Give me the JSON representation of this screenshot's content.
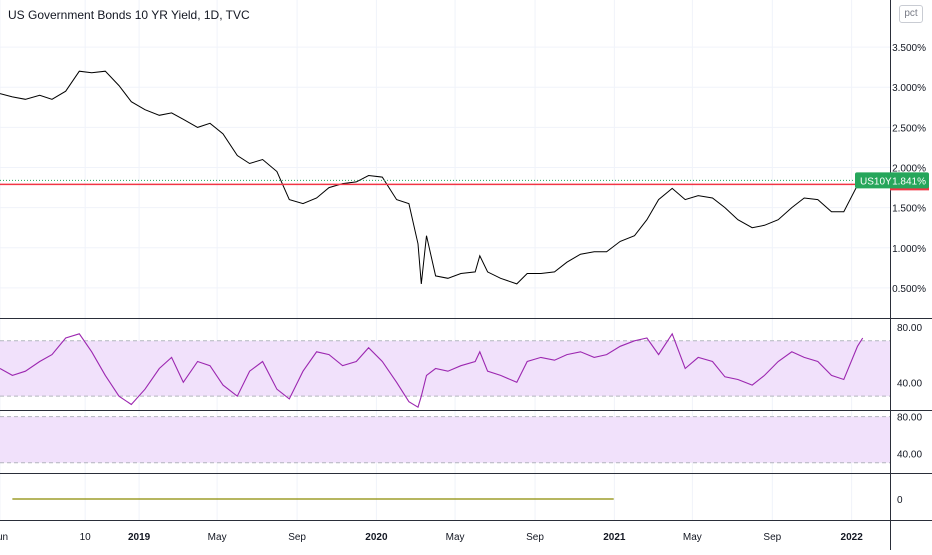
{
  "header": {
    "title": "US Government Bonds 10 YR Yield, 1D, TVC",
    "unit_button": "pct"
  },
  "price_badge": {
    "symbol": "US10Y",
    "value": "1.841%"
  },
  "colors": {
    "price_line": "#000000",
    "horizontal_line": "#f23645",
    "badge_bg": "#26a65b",
    "rsi_line": "#9c27b0",
    "rsi_band": "#f1e1fb",
    "indicator_line": "#8a8a00",
    "axis_text": "#131722"
  },
  "chart_data": [
    {
      "type": "line",
      "name": "price",
      "title": "US Government Bonds 10 YR Yield, 1D, TVC",
      "ylim": [
        0.2,
        3.8
      ],
      "y_ticks": [
        "3.500%",
        "3.000%",
        "2.500%",
        "2.000%",
        "1.500%",
        "1.000%",
        "0.500%"
      ],
      "y_tick_values": [
        3.5,
        3.0,
        2.5,
        2.0,
        1.5,
        1.0,
        0.5
      ],
      "horizontal_level": 1.79,
      "x": [
        "2018-06-01",
        "2018-06-20",
        "2018-07-10",
        "2018-08-01",
        "2018-08-20",
        "2018-09-10",
        "2018-10-01",
        "2018-10-20",
        "2018-11-10",
        "2018-12-01",
        "2018-12-20",
        "2019-01-10",
        "2019-02-01",
        "2019-02-20",
        "2019-03-10",
        "2019-04-01",
        "2019-04-20",
        "2019-05-10",
        "2019-06-01",
        "2019-06-20",
        "2019-07-10",
        "2019-08-01",
        "2019-08-20",
        "2019-09-10",
        "2019-10-01",
        "2019-10-20",
        "2019-11-10",
        "2019-12-01",
        "2019-12-20",
        "2020-01-10",
        "2020-02-01",
        "2020-02-20",
        "2020-03-05",
        "2020-03-10",
        "2020-03-18",
        "2020-04-01",
        "2020-04-20",
        "2020-05-10",
        "2020-06-01",
        "2020-06-08",
        "2020-06-20",
        "2020-07-10",
        "2020-08-04",
        "2020-08-20",
        "2020-09-10",
        "2020-10-01",
        "2020-10-20",
        "2020-11-10",
        "2020-12-01",
        "2020-12-20",
        "2021-01-10",
        "2021-02-01",
        "2021-02-20",
        "2021-03-10",
        "2021-03-31",
        "2021-04-20",
        "2021-05-10",
        "2021-06-01",
        "2021-06-20",
        "2021-07-10",
        "2021-08-01",
        "2021-08-20",
        "2021-09-10",
        "2021-10-01",
        "2021-10-20",
        "2021-11-10",
        "2021-12-01",
        "2021-12-20",
        "2022-01-10",
        "2022-01-18"
      ],
      "values": [
        2.92,
        2.88,
        2.85,
        2.9,
        2.85,
        2.95,
        3.2,
        3.18,
        3.2,
        3.02,
        2.82,
        2.72,
        2.65,
        2.68,
        2.6,
        2.5,
        2.55,
        2.42,
        2.15,
        2.05,
        2.1,
        1.95,
        1.6,
        1.55,
        1.62,
        1.75,
        1.8,
        1.82,
        1.9,
        1.88,
        1.6,
        1.55,
        1.05,
        0.55,
        1.15,
        0.65,
        0.62,
        0.68,
        0.7,
        0.9,
        0.7,
        0.62,
        0.55,
        0.68,
        0.68,
        0.7,
        0.82,
        0.92,
        0.95,
        0.95,
        1.08,
        1.15,
        1.35,
        1.6,
        1.74,
        1.6,
        1.65,
        1.62,
        1.5,
        1.35,
        1.25,
        1.28,
        1.35,
        1.5,
        1.62,
        1.6,
        1.45,
        1.45,
        1.78,
        1.84
      ],
      "x_ticks": [
        "Jun",
        "10",
        "2019",
        "May",
        "Sep",
        "2020",
        "May",
        "Sep",
        "2021",
        "May",
        "Sep",
        "2022"
      ],
      "x_tick_dates": [
        "2018-06-01",
        "2018-10-10",
        "2019-01-01",
        "2019-05-01",
        "2019-09-01",
        "2020-01-01",
        "2020-05-01",
        "2020-09-01",
        "2021-01-01",
        "2021-05-01",
        "2021-09-01",
        "2022-01-01"
      ]
    },
    {
      "type": "line",
      "name": "rsi",
      "ylim": [
        20,
        85
      ],
      "y_ticks": [
        "80.00",
        "40.00"
      ],
      "y_tick_values": [
        80,
        40
      ],
      "band": [
        30,
        70
      ],
      "x": [
        "2018-06-01",
        "2018-06-20",
        "2018-07-10",
        "2018-08-01",
        "2018-08-20",
        "2018-09-10",
        "2018-10-01",
        "2018-10-20",
        "2018-11-10",
        "2018-12-01",
        "2018-12-20",
        "2019-01-10",
        "2019-02-01",
        "2019-02-20",
        "2019-03-10",
        "2019-04-01",
        "2019-04-20",
        "2019-05-10",
        "2019-06-01",
        "2019-06-20",
        "2019-07-10",
        "2019-08-01",
        "2019-08-20",
        "2019-09-10",
        "2019-10-01",
        "2019-10-20",
        "2019-11-10",
        "2019-12-01",
        "2019-12-20",
        "2020-01-10",
        "2020-02-01",
        "2020-02-20",
        "2020-03-05",
        "2020-03-10",
        "2020-03-18",
        "2020-04-01",
        "2020-04-20",
        "2020-05-10",
        "2020-06-01",
        "2020-06-08",
        "2020-06-20",
        "2020-07-10",
        "2020-08-04",
        "2020-08-20",
        "2020-09-10",
        "2020-10-01",
        "2020-10-20",
        "2020-11-10",
        "2020-12-01",
        "2020-12-20",
        "2021-01-10",
        "2021-02-01",
        "2021-02-20",
        "2021-03-10",
        "2021-03-31",
        "2021-04-20",
        "2021-05-10",
        "2021-06-01",
        "2021-06-20",
        "2021-07-10",
        "2021-08-01",
        "2021-08-20",
        "2021-09-10",
        "2021-10-01",
        "2021-10-20",
        "2021-11-10",
        "2021-12-01",
        "2021-12-20",
        "2022-01-10",
        "2022-01-18"
      ],
      "values": [
        50,
        45,
        48,
        55,
        60,
        72,
        75,
        62,
        45,
        30,
        24,
        35,
        50,
        58,
        40,
        55,
        52,
        38,
        30,
        48,
        55,
        35,
        28,
        48,
        62,
        60,
        52,
        55,
        65,
        55,
        40,
        26,
        22,
        30,
        45,
        50,
        48,
        52,
        55,
        62,
        48,
        45,
        40,
        55,
        58,
        56,
        60,
        62,
        58,
        60,
        66,
        70,
        72,
        60,
        75,
        50,
        58,
        55,
        44,
        42,
        38,
        45,
        55,
        62,
        58,
        55,
        45,
        42,
        66,
        72
      ]
    },
    {
      "type": "line",
      "name": "indicator-2",
      "ylim": [
        20,
        85
      ],
      "y_ticks": [
        "80.00",
        "40.00"
      ],
      "y_tick_values": [
        80,
        40
      ],
      "band": [
        30,
        80
      ]
    },
    {
      "type": "line",
      "name": "indicator-3",
      "y_ticks": [
        "0"
      ],
      "y_tick_values": [
        0
      ],
      "x_range": [
        "2018-06-20",
        "2020-12-31"
      ],
      "values": [
        0
      ]
    }
  ]
}
